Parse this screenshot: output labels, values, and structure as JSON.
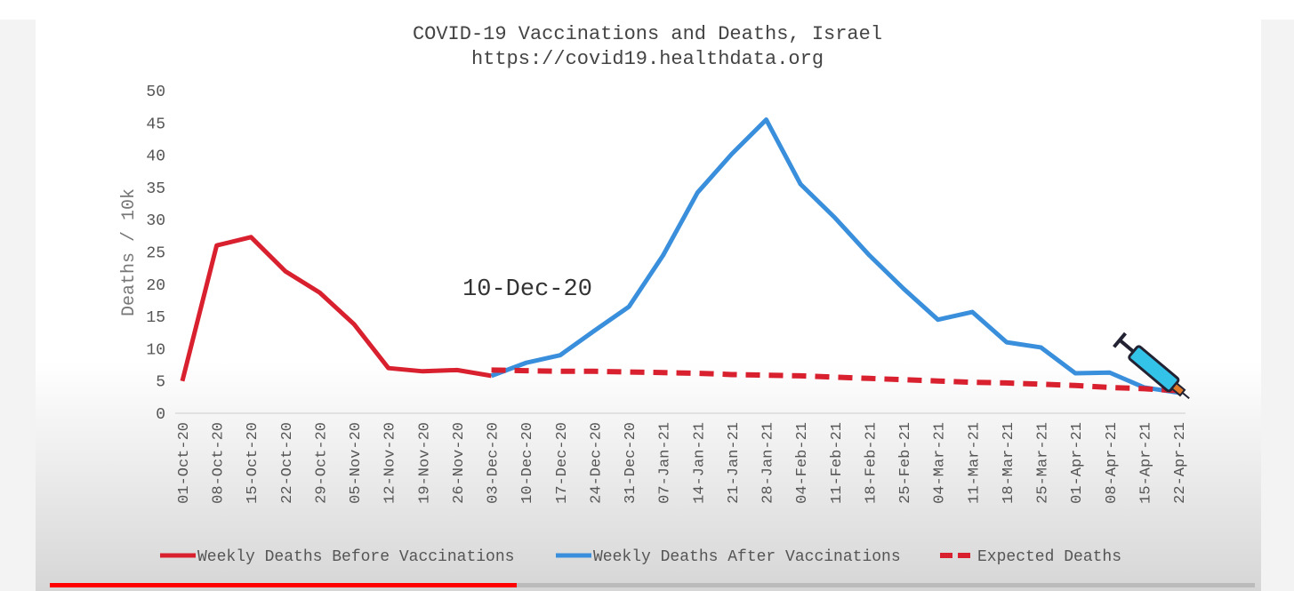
{
  "chart_data": {
    "type": "line",
    "title": "COVID-19 Vaccinations and Deaths, Israel",
    "subtitle": "https://covid19.healthdata.org",
    "y_label": "Deaths / 10k",
    "annotation": "10-Dec-20",
    "categories": [
      "01-Oct-20",
      "08-Oct-20",
      "15-Oct-20",
      "22-Oct-20",
      "29-Oct-20",
      "05-Nov-20",
      "12-Nov-20",
      "19-Nov-20",
      "26-Nov-20",
      "03-Dec-20",
      "10-Dec-20",
      "17-Dec-20",
      "24-Dec-20",
      "31-Dec-20",
      "07-Jan-21",
      "14-Jan-21",
      "21-Jan-21",
      "28-Jan-21",
      "04-Feb-21",
      "11-Feb-21",
      "18-Feb-21",
      "25-Feb-21",
      "04-Mar-21",
      "11-Mar-21",
      "18-Mar-21",
      "25-Mar-21",
      "01-Apr-21",
      "08-Apr-21",
      "15-Apr-21",
      "22-Apr-21"
    ],
    "series": [
      {
        "name": "Weekly Deaths Before Vaccinations",
        "color": "#d9202f",
        "dashed": false,
        "values": [
          5,
          26,
          27.3,
          22,
          18.7,
          13.8,
          7,
          6.5,
          6.7,
          5.8,
          null,
          null,
          null,
          null,
          null,
          null,
          null,
          null,
          null,
          null,
          null,
          null,
          null,
          null,
          null,
          null,
          null,
          null,
          null,
          null
        ]
      },
      {
        "name": "Weekly Deaths After Vaccinations",
        "color": "#3a8fdc",
        "dashed": false,
        "values": [
          null,
          null,
          null,
          null,
          null,
          null,
          null,
          null,
          null,
          5.8,
          7.8,
          9,
          12.8,
          16.5,
          24.5,
          34.2,
          40.2,
          45.5,
          35.5,
          30.3,
          24.5,
          19.3,
          14.5,
          15.7,
          11,
          10.2,
          6.2,
          6.3,
          4,
          3.2
        ]
      },
      {
        "name": "Expected Deaths",
        "color": "#d9202f",
        "dashed": true,
        "values": [
          null,
          null,
          null,
          null,
          null,
          null,
          null,
          null,
          null,
          6.7,
          6.6,
          6.5,
          6.5,
          6.4,
          6.3,
          6.2,
          6.0,
          5.9,
          5.8,
          5.6,
          5.4,
          5.2,
          5.0,
          4.8,
          4.7,
          4.5,
          4.3,
          4.0,
          3.8,
          3.5
        ]
      }
    ],
    "ylim": [
      0,
      50
    ],
    "yticks": [
      0,
      5,
      10,
      15,
      20,
      25,
      30,
      35,
      40,
      45,
      50
    ],
    "grid": false,
    "legend": "bottom"
  }
}
